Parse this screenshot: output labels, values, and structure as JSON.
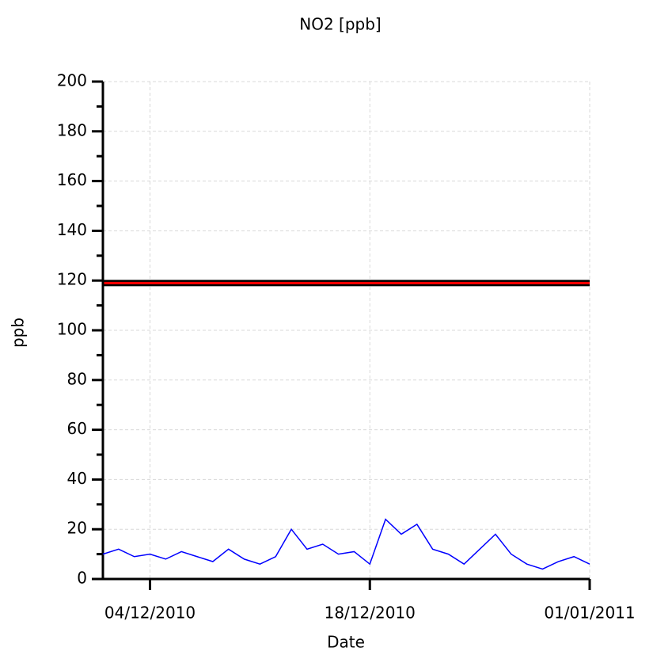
{
  "chart_data": {
    "type": "line",
    "title": "NO2 [ppb]",
    "x_label": "Date",
    "y_label": "ppb",
    "x": [
      "2010-12-01",
      "2010-12-02",
      "2010-12-03",
      "2010-12-04",
      "2010-12-05",
      "2010-12-06",
      "2010-12-07",
      "2010-12-08",
      "2010-12-09",
      "2010-12-10",
      "2010-12-11",
      "2010-12-12",
      "2010-12-13",
      "2010-12-14",
      "2010-12-15",
      "2010-12-16",
      "2010-12-17",
      "2010-12-18",
      "2010-12-19",
      "2010-12-20",
      "2010-12-21",
      "2010-12-22",
      "2010-12-23",
      "2010-12-24",
      "2010-12-25",
      "2010-12-26",
      "2010-12-27",
      "2010-12-28",
      "2010-12-29",
      "2010-12-30",
      "2010-12-31",
      "2011-01-01"
    ],
    "series": [
      {
        "color": "#0000ff",
        "values": [
          10,
          12,
          9,
          10,
          8,
          11,
          9,
          7,
          12,
          8,
          6,
          9,
          20,
          12,
          14,
          10,
          11,
          6,
          24,
          18,
          22,
          12,
          10,
          6,
          12,
          18,
          10,
          6,
          4,
          7,
          9,
          6
        ]
      }
    ],
    "reference_line": 119,
    "reference_color": "#ff0000",
    "xlim": [
      "2010-12-01",
      "2011-01-01"
    ],
    "xticks": [
      {
        "value": "2010-12-04",
        "label": "04/12/2010"
      },
      {
        "value": "2010-12-18",
        "label": "18/12/2010"
      },
      {
        "value": "2011-01-01",
        "label": "01/01/2011"
      }
    ],
    "ylim": [
      0,
      200
    ],
    "yticks": [
      0,
      20,
      40,
      60,
      80,
      100,
      120,
      140,
      160,
      180,
      200
    ],
    "grid": true
  }
}
